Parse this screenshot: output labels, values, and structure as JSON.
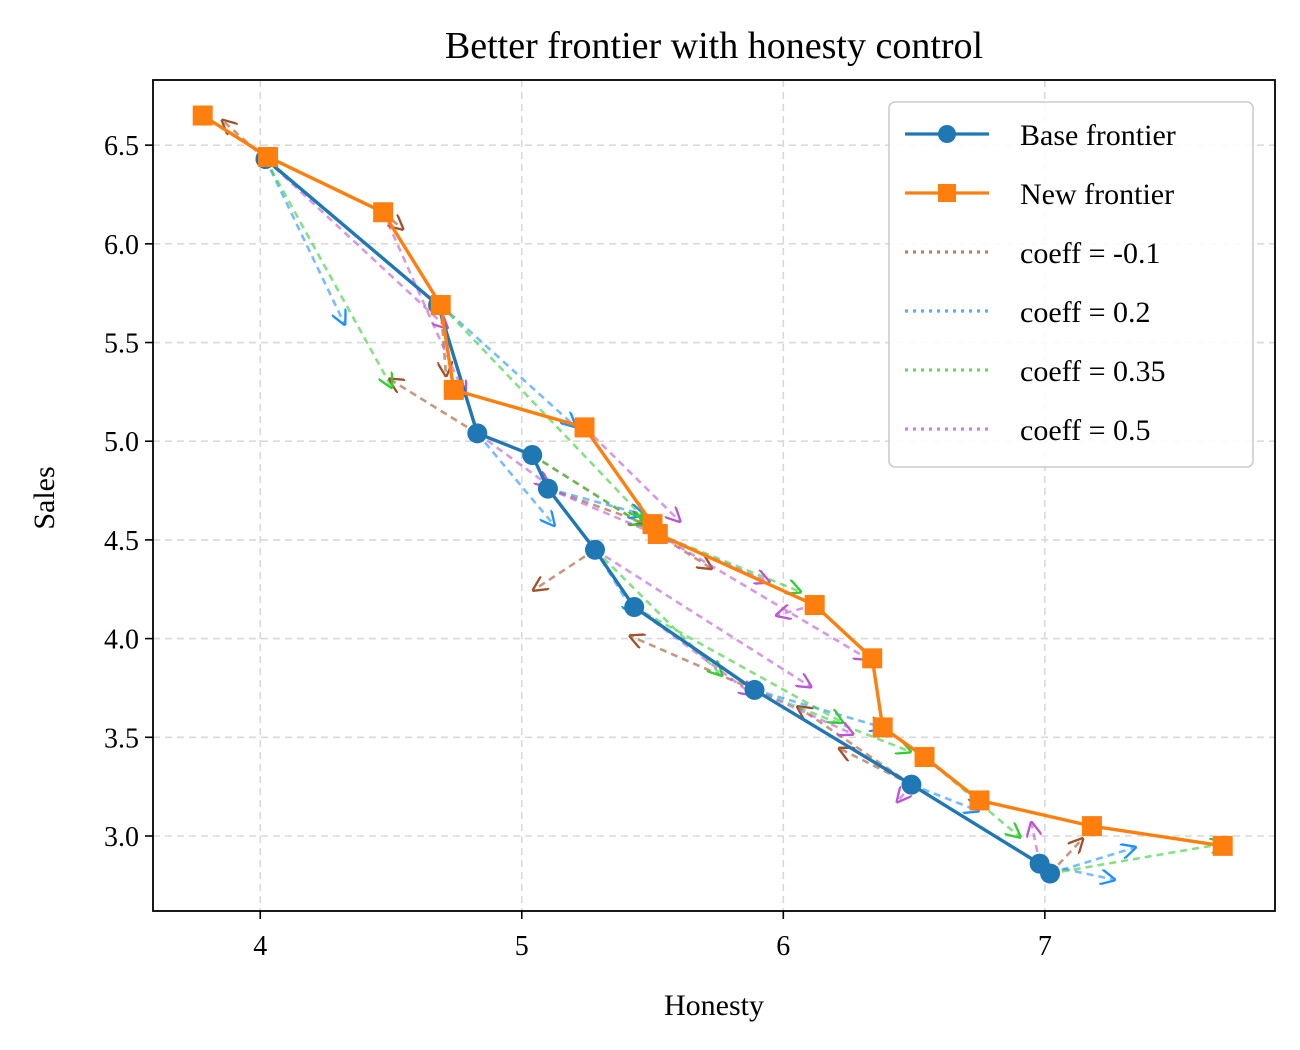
{
  "chart_data": {
    "type": "line",
    "title": "Better frontier with honesty control",
    "xlabel": "Honesty",
    "ylabel": "Sales",
    "xlim": [
      3.59,
      7.88
    ],
    "ylim": [
      2.62,
      6.83
    ],
    "xticks": [
      4,
      5,
      6,
      7
    ],
    "yticks": [
      3.0,
      3.5,
      4.0,
      4.5,
      5.0,
      5.5,
      6.0,
      6.5
    ],
    "xtick_labels": [
      "4",
      "5",
      "6",
      "7"
    ],
    "ytick_labels": [
      "3.0",
      "3.5",
      "4.0",
      "4.5",
      "5.0",
      "5.5",
      "6.0",
      "6.5"
    ],
    "grid": true,
    "legend_position": "top-right",
    "series": [
      {
        "name": "Base frontier",
        "style": "solid",
        "marker": "circle",
        "color": "#1f77b4",
        "x": [
          4.02,
          4.68,
          4.83,
          5.04,
          5.1,
          5.28,
          5.43,
          5.89,
          6.49,
          6.98,
          7.02
        ],
        "y": [
          6.43,
          5.69,
          5.04,
          4.93,
          4.76,
          4.45,
          4.16,
          3.74,
          3.26,
          2.86,
          2.81
        ]
      },
      {
        "name": "New frontier",
        "style": "solid",
        "marker": "square",
        "color": "#ff7f0e",
        "x": [
          3.78,
          4.03,
          4.47,
          4.69,
          4.74,
          5.24,
          5.5,
          5.52,
          6.12,
          6.34,
          6.38,
          6.54,
          6.75,
          7.18,
          7.68
        ],
        "y": [
          6.65,
          6.44,
          6.16,
          5.69,
          5.26,
          5.07,
          4.58,
          4.53,
          4.17,
          3.9,
          3.55,
          3.4,
          3.18,
          3.05,
          2.95
        ]
      }
    ],
    "coeff_series": [
      {
        "name": "coeff = -0.1",
        "color": "#a0522d",
        "segments": [
          [
            [
              4.02,
              6.43
            ],
            [
              3.86,
              6.62
            ]
          ],
          [
            [
              4.47,
              6.16
            ],
            [
              4.54,
              6.08
            ]
          ],
          [
            [
              4.69,
              5.69
            ],
            [
              4.71,
              5.34
            ]
          ],
          [
            [
              4.83,
              5.04
            ],
            [
              4.5,
              5.31
            ]
          ],
          [
            [
              5.28,
              4.45
            ],
            [
              5.05,
              4.25
            ]
          ],
          [
            [
              5.89,
              3.74
            ],
            [
              5.42,
              4.01
            ]
          ],
          [
            [
              5.04,
              4.93
            ],
            [
              5.72,
              4.36
            ]
          ],
          [
            [
              5.1,
              4.76
            ],
            [
              5.46,
              4.59
            ]
          ],
          [
            [
              6.49,
              3.26
            ],
            [
              6.06,
              3.65
            ]
          ],
          [
            [
              6.49,
              3.26
            ],
            [
              6.22,
              3.44
            ]
          ],
          [
            [
              7.02,
              2.81
            ],
            [
              7.14,
              2.98
            ]
          ]
        ]
      },
      {
        "name": "coeff = 0.2",
        "color": "#1e90ff",
        "segments": [
          [
            [
              4.02,
              6.43
            ],
            [
              4.32,
              5.6
            ]
          ],
          [
            [
              4.83,
              5.04
            ],
            [
              5.12,
              4.58
            ]
          ],
          [
            [
              4.69,
              5.69
            ],
            [
              5.2,
              5.08
            ]
          ],
          [
            [
              5.1,
              4.76
            ],
            [
              5.46,
              4.63
            ]
          ],
          [
            [
              5.28,
              4.45
            ],
            [
              5.43,
              4.13
            ]
          ],
          [
            [
              5.89,
              3.74
            ],
            [
              6.38,
              3.55
            ]
          ],
          [
            [
              6.49,
              3.26
            ],
            [
              6.74,
              3.13
            ]
          ],
          [
            [
              7.02,
              2.81
            ],
            [
              7.34,
              2.94
            ]
          ],
          [
            [
              6.98,
              2.86
            ],
            [
              7.26,
              2.78
            ]
          ]
        ]
      },
      {
        "name": "coeff = 0.35",
        "color": "#32cd32",
        "segments": [
          [
            [
              4.02,
              6.43
            ],
            [
              4.5,
              5.28
            ]
          ],
          [
            [
              4.69,
              5.69
            ],
            [
              5.46,
              4.62
            ]
          ],
          [
            [
              5.04,
              4.93
            ],
            [
              5.46,
              4.58
            ]
          ],
          [
            [
              5.52,
              4.53
            ],
            [
              6.06,
              4.24
            ]
          ],
          [
            [
              5.28,
              4.45
            ],
            [
              5.76,
              3.82
            ]
          ],
          [
            [
              5.43,
              4.16
            ],
            [
              6.22,
              3.58
            ]
          ],
          [
            [
              5.89,
              3.74
            ],
            [
              6.48,
              3.43
            ]
          ],
          [
            [
              6.54,
              3.4
            ],
            [
              6.9,
              3.0
            ]
          ],
          [
            [
              7.02,
              2.81
            ],
            [
              7.68,
              2.96
            ]
          ]
        ]
      },
      {
        "name": "coeff = 0.5",
        "color": "#ba55d3",
        "segments": [
          [
            [
              4.02,
              6.43
            ],
            [
              4.71,
              5.58
            ]
          ],
          [
            [
              4.47,
              6.16
            ],
            [
              4.78,
              5.24
            ]
          ],
          [
            [
              4.83,
              5.04
            ],
            [
              5.1,
              4.78
            ]
          ],
          [
            [
              5.24,
              5.07
            ],
            [
              5.6,
              4.6
            ]
          ],
          [
            [
              5.1,
              4.76
            ],
            [
              5.94,
              4.29
            ]
          ],
          [
            [
              5.52,
              4.53
            ],
            [
              6.32,
              3.9
            ]
          ],
          [
            [
              5.28,
              4.45
            ],
            [
              6.1,
              3.76
            ]
          ],
          [
            [
              5.43,
              4.16
            ],
            [
              5.88,
              3.72
            ]
          ],
          [
            [
              5.89,
              3.74
            ],
            [
              6.26,
              3.52
            ]
          ],
          [
            [
              6.12,
              4.17
            ],
            [
              5.98,
              4.12
            ]
          ],
          [
            [
              6.49,
              3.26
            ],
            [
              6.44,
              3.18
            ]
          ],
          [
            [
              6.98,
              2.86
            ],
            [
              6.95,
              3.06
            ]
          ]
        ]
      }
    ]
  }
}
